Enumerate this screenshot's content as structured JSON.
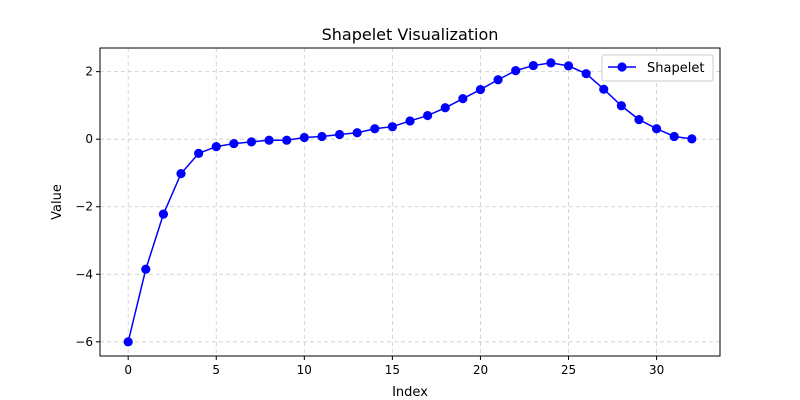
{
  "chart_data": {
    "type": "line",
    "title": "Shapelet Visualization",
    "xlabel": "Index",
    "ylabel": "Value",
    "xlim": [
      -1.6,
      33.6
    ],
    "ylim": [
      -6.42,
      2.7
    ],
    "xticks": [
      0,
      5,
      10,
      15,
      20,
      25,
      30
    ],
    "yticks": [
      -6,
      -4,
      -2,
      0,
      2
    ],
    "grid": true,
    "legend_position": "top-right",
    "series": [
      {
        "name": "Shapelet",
        "color": "#0000ff",
        "marker": "circle",
        "x": [
          0,
          1,
          2,
          3,
          4,
          5,
          6,
          7,
          8,
          9,
          10,
          11,
          12,
          13,
          14,
          15,
          16,
          17,
          18,
          19,
          20,
          21,
          22,
          23,
          24,
          25,
          26,
          27,
          28,
          29,
          30,
          31,
          32
        ],
        "y": [
          -6.0,
          -3.85,
          -2.22,
          -1.02,
          -0.42,
          -0.22,
          -0.13,
          -0.08,
          -0.03,
          -0.03,
          0.05,
          0.08,
          0.14,
          0.19,
          0.31,
          0.37,
          0.54,
          0.7,
          0.93,
          1.2,
          1.47,
          1.76,
          2.03,
          2.18,
          2.26,
          2.17,
          1.94,
          1.48,
          0.99,
          0.58,
          0.31,
          0.08,
          0.01
        ]
      }
    ]
  }
}
